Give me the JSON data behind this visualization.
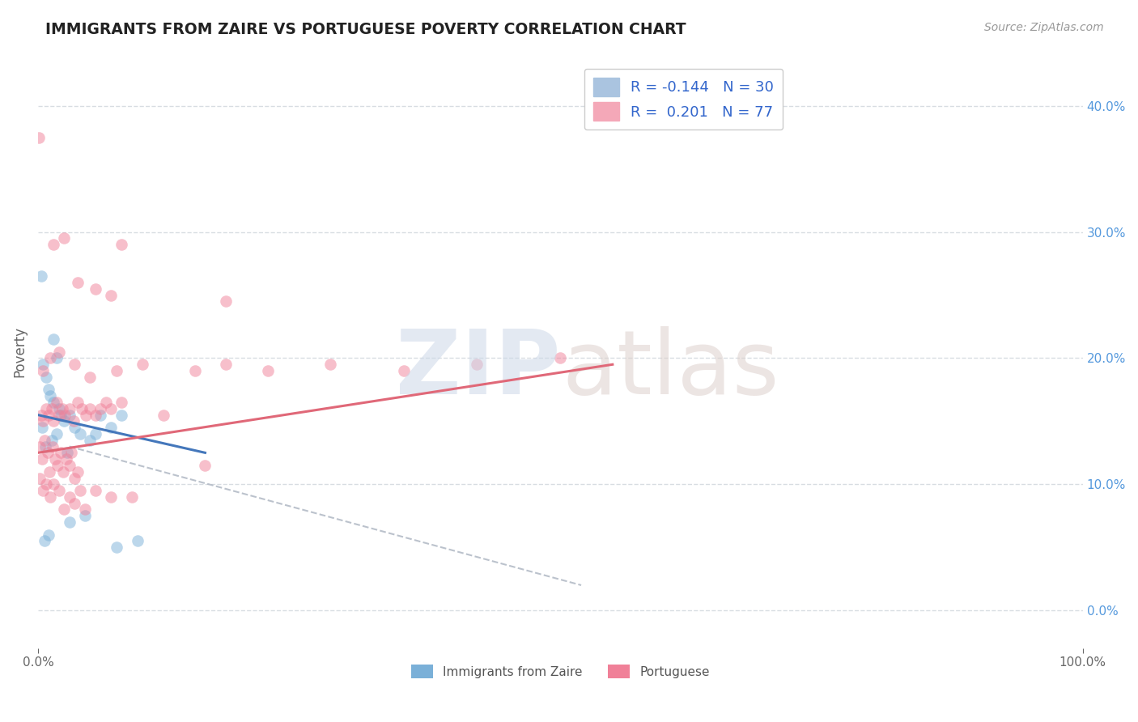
{
  "title": "IMMIGRANTS FROM ZAIRE VS PORTUGUESE POVERTY CORRELATION CHART",
  "source": "Source: ZipAtlas.com",
  "ylabel": "Poverty",
  "xlabel": "",
  "xlim": [
    0,
    100
  ],
  "ylim": [
    -3,
    44
  ],
  "ytick_right_labels": [
    "0.0%",
    "10.0%",
    "20.0%",
    "30.0%",
    "40.0%"
  ],
  "ytick_right_values": [
    0,
    10,
    20,
    30,
    40
  ],
  "xtick_labels": [
    "0.0%",
    "100.0%"
  ],
  "xtick_values": [
    0,
    100
  ],
  "zaire_color": "#7ab0d8",
  "portuguese_color": "#f08098",
  "zaire_alpha": 0.5,
  "portuguese_alpha": 0.5,
  "watermark_color_zip": "#ccd8e8",
  "watermark_color_atlas": "#ddd0cc",
  "blue_line_color": "#4477bb",
  "pink_line_color": "#e06878",
  "dashed_line_color": "#b0b8c4",
  "grid_color": "#d8dde2",
  "background_color": "#ffffff",
  "zaire_points": [
    [
      0.3,
      26.5
    ],
    [
      1.5,
      21.5
    ],
    [
      1.8,
      20.0
    ],
    [
      0.5,
      19.5
    ],
    [
      0.8,
      18.5
    ],
    [
      1.0,
      17.5
    ],
    [
      1.2,
      17.0
    ],
    [
      1.5,
      16.5
    ],
    [
      2.0,
      16.0
    ],
    [
      2.2,
      15.5
    ],
    [
      2.5,
      15.0
    ],
    [
      3.0,
      15.5
    ],
    [
      3.5,
      14.5
    ],
    [
      4.0,
      14.0
    ],
    [
      5.0,
      13.5
    ],
    [
      6.0,
      15.5
    ],
    [
      7.0,
      14.5
    ],
    [
      8.0,
      15.5
    ],
    [
      0.4,
      14.5
    ],
    [
      0.7,
      13.0
    ],
    [
      1.3,
      13.5
    ],
    [
      1.8,
      14.0
    ],
    [
      2.8,
      12.5
    ],
    [
      5.5,
      14.0
    ],
    [
      0.6,
      5.5
    ],
    [
      1.0,
      6.0
    ],
    [
      3.0,
      7.0
    ],
    [
      4.5,
      7.5
    ],
    [
      7.5,
      5.0
    ],
    [
      9.5,
      5.5
    ]
  ],
  "portuguese_points": [
    [
      0.1,
      37.5
    ],
    [
      2.5,
      29.5
    ],
    [
      8.0,
      29.0
    ],
    [
      3.8,
      26.0
    ],
    [
      5.5,
      25.5
    ],
    [
      18.0,
      24.5
    ],
    [
      1.5,
      29.0
    ],
    [
      7.0,
      25.0
    ],
    [
      0.5,
      19.0
    ],
    [
      1.2,
      20.0
    ],
    [
      2.0,
      20.5
    ],
    [
      3.5,
      19.5
    ],
    [
      5.0,
      18.5
    ],
    [
      7.5,
      19.0
    ],
    [
      10.0,
      19.5
    ],
    [
      15.0,
      19.0
    ],
    [
      18.0,
      19.5
    ],
    [
      22.0,
      19.0
    ],
    [
      28.0,
      19.5
    ],
    [
      35.0,
      19.0
    ],
    [
      42.0,
      19.5
    ],
    [
      50.0,
      20.0
    ],
    [
      0.3,
      15.5
    ],
    [
      0.5,
      15.0
    ],
    [
      0.8,
      16.0
    ],
    [
      1.0,
      15.5
    ],
    [
      1.3,
      16.0
    ],
    [
      1.5,
      15.0
    ],
    [
      1.8,
      16.5
    ],
    [
      2.0,
      15.5
    ],
    [
      2.3,
      16.0
    ],
    [
      2.6,
      15.5
    ],
    [
      3.0,
      16.0
    ],
    [
      3.4,
      15.0
    ],
    [
      3.8,
      16.5
    ],
    [
      4.2,
      16.0
    ],
    [
      4.6,
      15.5
    ],
    [
      5.0,
      16.0
    ],
    [
      5.5,
      15.5
    ],
    [
      6.0,
      16.0
    ],
    [
      6.5,
      16.5
    ],
    [
      7.0,
      16.0
    ],
    [
      8.0,
      16.5
    ],
    [
      9.0,
      9.0
    ],
    [
      12.0,
      15.5
    ],
    [
      16.0,
      11.5
    ],
    [
      0.2,
      13.0
    ],
    [
      0.4,
      12.0
    ],
    [
      0.6,
      13.5
    ],
    [
      0.9,
      12.5
    ],
    [
      1.1,
      11.0
    ],
    [
      1.4,
      13.0
    ],
    [
      1.6,
      12.0
    ],
    [
      1.9,
      11.5
    ],
    [
      2.2,
      12.5
    ],
    [
      2.4,
      11.0
    ],
    [
      2.7,
      12.0
    ],
    [
      3.0,
      11.5
    ],
    [
      3.2,
      12.5
    ],
    [
      3.5,
      10.5
    ],
    [
      3.8,
      11.0
    ],
    [
      0.2,
      10.5
    ],
    [
      0.5,
      9.5
    ],
    [
      0.8,
      10.0
    ],
    [
      1.2,
      9.0
    ],
    [
      1.5,
      10.0
    ],
    [
      2.0,
      9.5
    ],
    [
      2.5,
      8.0
    ],
    [
      3.0,
      9.0
    ],
    [
      3.5,
      8.5
    ],
    [
      4.0,
      9.5
    ],
    [
      4.5,
      8.0
    ],
    [
      5.5,
      9.5
    ],
    [
      7.0,
      9.0
    ]
  ],
  "blue_line_x": [
    0,
    16
  ],
  "blue_line_y_start": 15.5,
  "blue_line_y_end": 12.5,
  "pink_line_x": [
    0,
    55
  ],
  "pink_line_y_start": 12.5,
  "pink_line_y_end": 19.5,
  "dashed_line_x": [
    3,
    52
  ],
  "dashed_line_y_start": 13.0,
  "dashed_line_y_end": 2.0
}
